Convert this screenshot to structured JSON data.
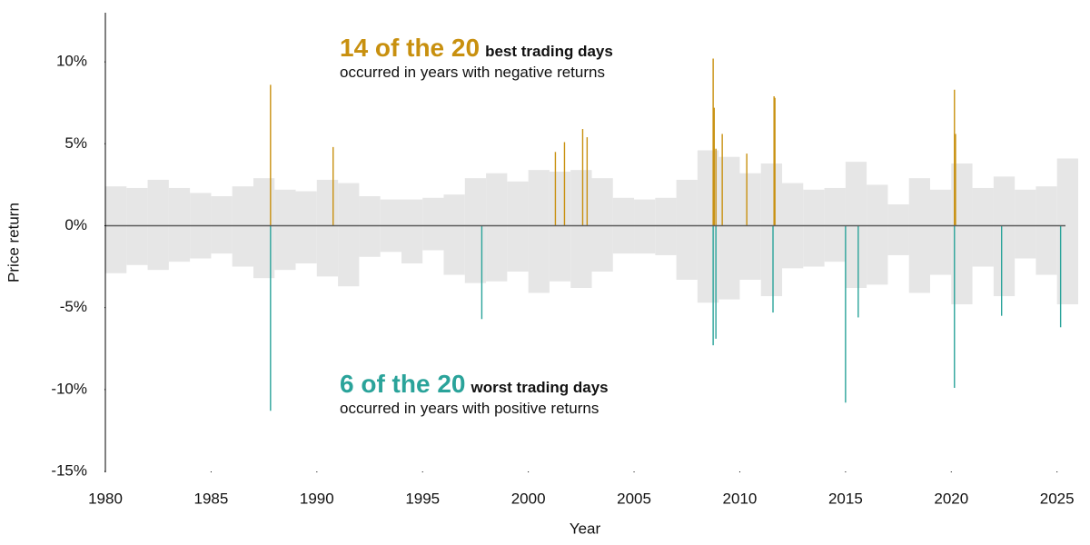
{
  "chart_data": {
    "type": "spike",
    "x_label": "Year",
    "y_label": "Price return",
    "xlim": [
      1980,
      2025.4
    ],
    "xticks": [
      1980,
      1985,
      1990,
      1995,
      2000,
      2005,
      2010,
      2015,
      2020,
      2025
    ],
    "ylim": [
      -15,
      13
    ],
    "yticks": [
      {
        "value": 10,
        "label": "10%"
      },
      {
        "value": 5,
        "label": "5%"
      },
      {
        "value": 0,
        "label": "0%"
      },
      {
        "value": -5,
        "label": "-5%"
      },
      {
        "value": -10,
        "label": "-10%"
      },
      {
        "value": -15,
        "label": "-15%"
      }
    ],
    "range": {
      "color": "#e6e6e6",
      "x": [
        1980,
        1981,
        1982,
        1983,
        1984,
        1985,
        1986,
        1987,
        1988,
        1989,
        1990,
        1991,
        1992,
        1993,
        1994,
        1995,
        1996,
        1997,
        1998,
        1999,
        2000,
        2001,
        2002,
        2003,
        2004,
        2005,
        2006,
        2007,
        2008,
        2009,
        2010,
        2011,
        2012,
        2013,
        2014,
        2015,
        2016,
        2017,
        2018,
        2019,
        2020,
        2021,
        2022,
        2023,
        2024,
        2025
      ],
      "high": [
        2.4,
        2.3,
        2.8,
        2.3,
        2.0,
        1.8,
        2.4,
        2.9,
        2.2,
        2.1,
        2.8,
        2.6,
        1.8,
        1.6,
        1.6,
        1.7,
        1.9,
        2.9,
        3.2,
        2.7,
        3.4,
        3.3,
        3.4,
        2.9,
        1.7,
        1.6,
        1.7,
        2.8,
        4.6,
        4.2,
        3.2,
        3.8,
        2.6,
        2.2,
        2.3,
        3.9,
        2.5,
        1.3,
        2.9,
        2.2,
        3.8,
        2.3,
        3.0,
        2.2,
        2.4,
        4.1
      ],
      "low": [
        -2.9,
        -2.4,
        -2.7,
        -2.2,
        -2.0,
        -1.7,
        -2.5,
        -3.2,
        -2.7,
        -2.3,
        -3.1,
        -3.7,
        -1.9,
        -1.6,
        -2.3,
        -1.5,
        -3.0,
        -3.5,
        -3.4,
        -2.8,
        -4.1,
        -3.4,
        -3.8,
        -2.8,
        -1.7,
        -1.7,
        -1.8,
        -3.3,
        -4.7,
        -4.5,
        -3.3,
        -4.3,
        -2.6,
        -2.5,
        -2.2,
        -3.8,
        -3.6,
        -1.8,
        -4.1,
        -3.0,
        -4.8,
        -2.5,
        -4.3,
        -2.0,
        -3.0,
        -4.8
      ]
    },
    "series": [
      {
        "name": "best trading days",
        "color": "#c8900f",
        "x": [
          1987.81,
          1990.77,
          2001.28,
          2001.71,
          2002.57,
          2002.78,
          2008.74,
          2008.79,
          2008.87,
          2009.17,
          2010.33,
          2011.62,
          2011.66,
          2020.15,
          2020.2
        ],
        "values": [
          8.6,
          4.8,
          4.5,
          5.1,
          5.9,
          5.4,
          10.2,
          7.2,
          4.7,
          5.6,
          4.4,
          7.9,
          7.8,
          8.3,
          5.6
        ]
      },
      {
        "name": "worst trading days",
        "color": "#2aa39a",
        "x": [
          1987.81,
          1997.8,
          2008.74,
          2008.87,
          2011.57,
          2015.0,
          2015.6,
          2020.15,
          2022.38,
          2025.17
        ],
        "values": [
          -11.3,
          -5.7,
          -7.3,
          -6.9,
          -5.3,
          -10.8,
          -5.6,
          -9.9,
          -5.5,
          -6.2
        ]
      }
    ],
    "annotations": [
      {
        "count": "14 of the 20",
        "label": "best trading days",
        "note": "occurred in years with negative returns"
      },
      {
        "count": "6 of the 20",
        "label": "worst trading days",
        "note": "occurred in years with positive returns"
      }
    ]
  }
}
